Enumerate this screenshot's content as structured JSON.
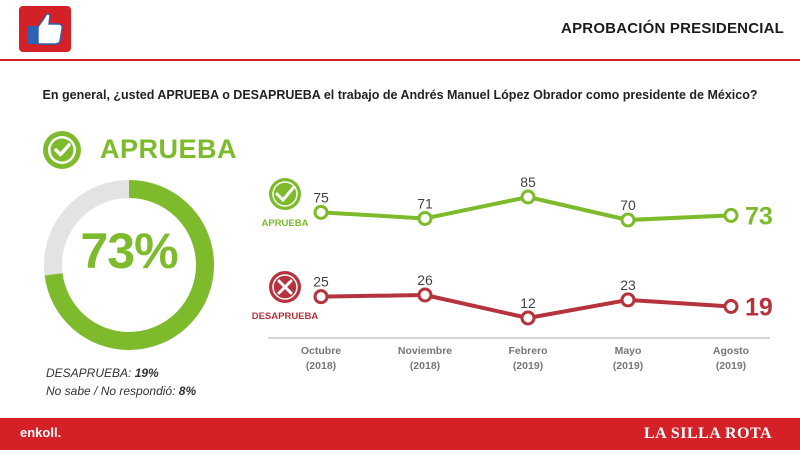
{
  "header": {
    "title": "APROBACIÓN PRESIDENCIAL",
    "logo_icon": "thumbs-up-icon"
  },
  "question": "En general, ¿usted APRUEBA o DESAPRUEBA el trabajo de Andrés Manuel López Obrador como presidente de México?",
  "summary": {
    "title": "APRUEBA",
    "value": "73%",
    "percent": 73,
    "check_icon": "check-circle-icon",
    "notes": [
      {
        "label": "DESAPRUEBA:",
        "value": "19%"
      },
      {
        "label": "No sabe / No respondió:",
        "value": "8%"
      }
    ]
  },
  "chart_data": {
    "type": "line",
    "categories": [
      [
        "Octubre",
        "(2018)"
      ],
      [
        "Noviembre",
        "(2018)"
      ],
      [
        "Febrero",
        "(2019)"
      ],
      [
        "Mayo",
        "(2019)"
      ],
      [
        "Agosto",
        "(2019)"
      ]
    ],
    "series": [
      {
        "name": "APRUEBA",
        "values": [
          75,
          71,
          85,
          70,
          73
        ],
        "color": "#7dbb2c",
        "icon": "check-circle-icon"
      },
      {
        "name": "DESAPRUEBA",
        "values": [
          25,
          26,
          12,
          23,
          19
        ],
        "color": "#b5333d",
        "icon": "x-circle-icon"
      }
    ],
    "grid": false
  },
  "footer": {
    "left_brand": "enkoll.",
    "right_brand": "LA SILLA ROTA"
  },
  "colors": {
    "green": "#7dbb2c",
    "red": "#b5333d",
    "brand_red": "#d32127"
  }
}
